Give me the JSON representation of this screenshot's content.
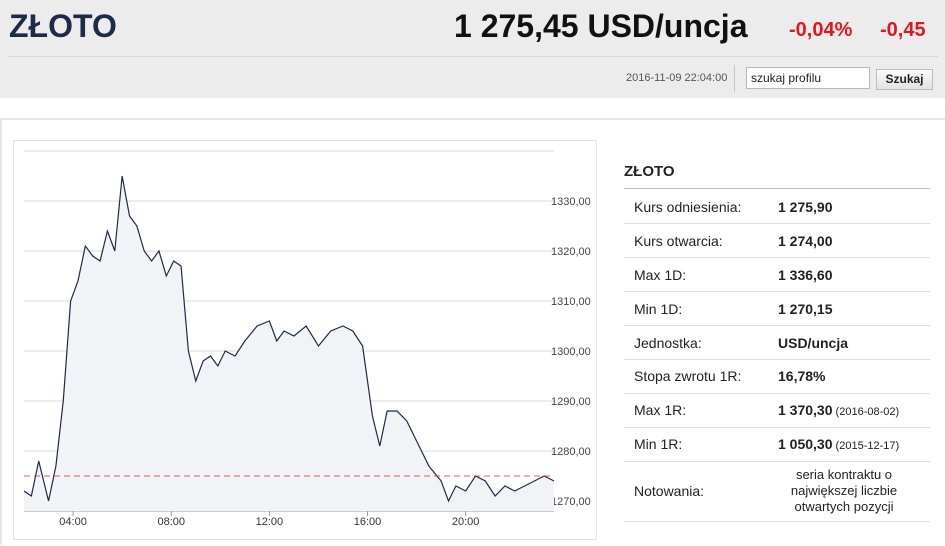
{
  "header": {
    "instrument": "ZŁOTO",
    "price": "1 275,45 USD/uncja",
    "change_pct": "-0,04%",
    "change_abs": "-0,45",
    "timestamp": "2016-11-09 22:04:00",
    "search_value": "szukaj profilu",
    "search_button": "Szukaj",
    "accent_negative": "#e3181f"
  },
  "panel": {
    "title": "ZŁOTO",
    "rows": [
      {
        "label": "Kurs odniesienia:",
        "value": "1 275,90",
        "date": ""
      },
      {
        "label": "Kurs otwarcia:",
        "value": "1 274,00",
        "date": ""
      },
      {
        "label": "Max 1D:",
        "value": "1 336,60",
        "date": ""
      },
      {
        "label": "Min 1D:",
        "value": "1 270,15",
        "date": ""
      },
      {
        "label": "Jednostka:",
        "value": "USD/uncja",
        "date": ""
      },
      {
        "label": "Stopa zwrotu 1R:",
        "value": "16,78%",
        "date": ""
      },
      {
        "label": "Max 1R:",
        "value": "1 370,30",
        "date": "(2016-08-02)"
      },
      {
        "label": "Min 1R:",
        "value": "1 050,30",
        "date": "(2015-12-17)"
      },
      {
        "label": "Notowania:",
        "value": "seria kontraktu o największej liczbie otwartych pozycji",
        "date": ""
      }
    ]
  },
  "chart_data": {
    "type": "area",
    "reference_line": 1275,
    "ylim": [
      1268,
      1340
    ],
    "xlim": [
      2,
      23.6
    ],
    "y_ticks": [
      "1330,00",
      "1320,00",
      "1310,00",
      "1300,00",
      "1290,00",
      "1280,00",
      "1270,00"
    ],
    "y_tick_values": [
      1330,
      1320,
      1310,
      1300,
      1290,
      1280,
      1270
    ],
    "x_ticks": [
      "04:00",
      "08:00",
      "12:00",
      "16:00",
      "20:00"
    ],
    "x_tick_values": [
      4,
      8,
      12,
      16,
      20
    ],
    "x": [
      2.0,
      2.3,
      2.6,
      3.0,
      3.3,
      3.6,
      3.9,
      4.2,
      4.5,
      4.8,
      5.1,
      5.4,
      5.7,
      6.0,
      6.3,
      6.6,
      6.9,
      7.2,
      7.5,
      7.8,
      8.1,
      8.4,
      8.7,
      9.0,
      9.3,
      9.6,
      9.9,
      10.2,
      10.6,
      11.0,
      11.5,
      12.0,
      12.3,
      12.6,
      13.0,
      13.5,
      14.0,
      14.5,
      15.0,
      15.4,
      15.8,
      16.2,
      16.5,
      16.8,
      17.2,
      17.6,
      18.0,
      18.5,
      19.0,
      19.3,
      19.6,
      20.0,
      20.4,
      20.8,
      21.2,
      21.6,
      22.0,
      22.4,
      22.8,
      23.2,
      23.6
    ],
    "y": [
      1272,
      1271,
      1278,
      1270,
      1277,
      1290,
      1310,
      1314,
      1321,
      1319,
      1318,
      1324,
      1320,
      1335,
      1327,
      1325,
      1320,
      1318,
      1320,
      1315,
      1318,
      1317,
      1300,
      1294,
      1298,
      1299,
      1297,
      1300,
      1299,
      1302,
      1305,
      1306,
      1302,
      1304,
      1303,
      1305,
      1301,
      1304,
      1305,
      1304,
      1301,
      1287,
      1281,
      1288,
      1288,
      1286,
      1282,
      1277,
      1274,
      1270,
      1273,
      1272,
      1275,
      1274,
      1271,
      1273,
      1272,
      1273,
      1274,
      1275,
      1274
    ]
  }
}
